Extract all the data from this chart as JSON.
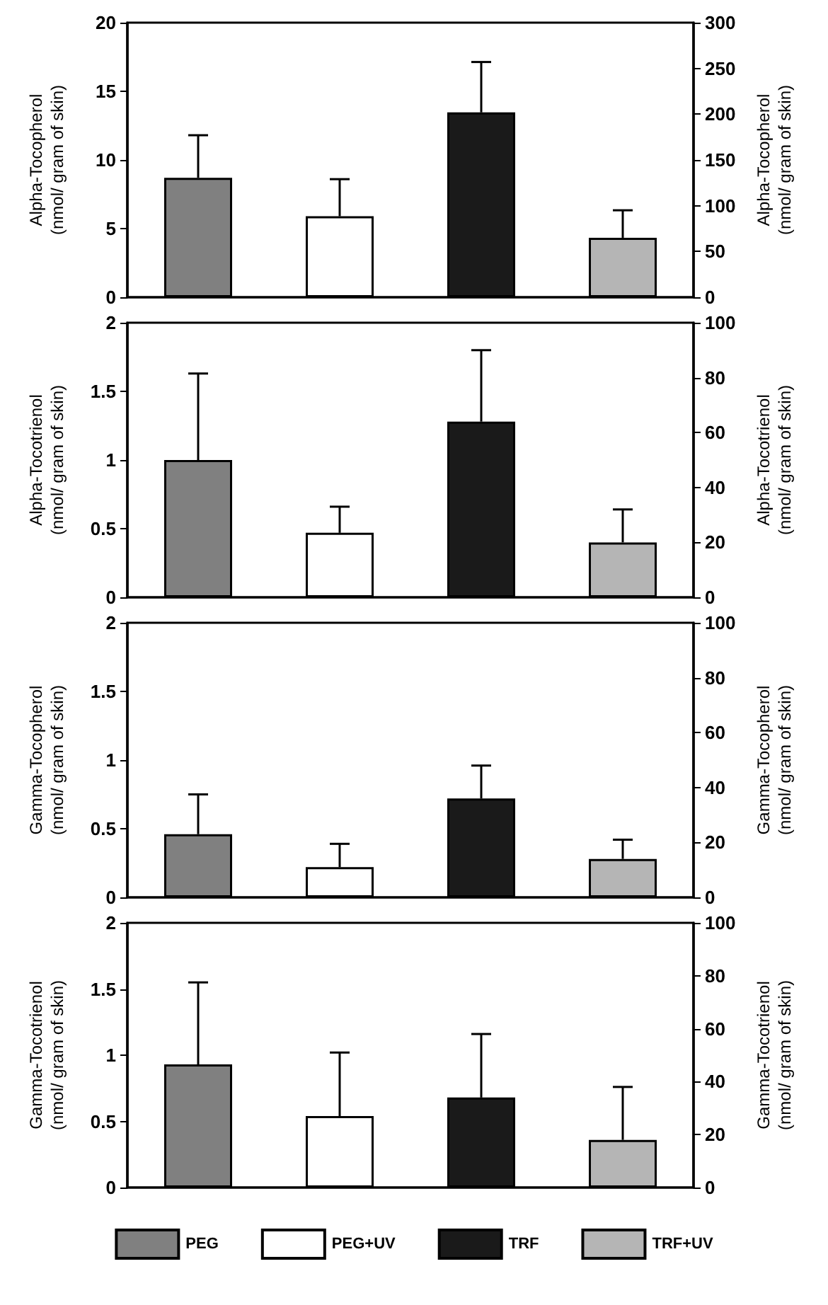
{
  "chart_data": [
    {
      "type": "bar",
      "categories": [
        null,
        null,
        null,
        null
      ],
      "ylabel": "Alpha-Tocopherol\n(nmol/ gram of skin)",
      "y2label": "Alpha-Tocopherol\n(nmol/ gram of skin)",
      "ylim": [
        0,
        20
      ],
      "yticks": [
        0,
        5,
        10,
        15,
        20
      ],
      "y2lim": [
        0,
        300
      ],
      "y2ticks": [
        0,
        50,
        100,
        150,
        200,
        250,
        300
      ],
      "tick_labels": "y",
      "grid": false,
      "series": [
        {
          "color": "#808080",
          "values": [
            8.7,
            null,
            null,
            null
          ],
          "errors": [
            [
              8.7,
              11.8
            ],
            null,
            null,
            null
          ]
        },
        {
          "color": "#ffffff",
          "values": [
            null,
            5.9,
            null,
            null
          ],
          "errors": [
            null,
            [
              5.9,
              8.6
            ],
            null,
            null
          ]
        },
        {
          "color": "#1a1a1a",
          "axis": "y2",
          "values": [
            null,
            null,
            202,
            null
          ],
          "errors": [
            null,
            null,
            [
              202,
              257
            ],
            null
          ]
        },
        {
          "color": "#b5b5b5",
          "axis": "y2",
          "values": [
            null,
            null,
            null,
            65
          ],
          "errors": [
            null,
            null,
            null,
            [
              65,
              95
            ]
          ]
        }
      ]
    },
    {
      "type": "bar",
      "categories": [
        null,
        null,
        null,
        null
      ],
      "ylabel": "Alpha-Tocotrienol\n(nmol/ gram of skin)",
      "y2label": "Alpha-Tocotrienol\n(nmol/ gram of skin)",
      "ylim": [
        0,
        2
      ],
      "yticks": [
        0,
        0.5,
        1,
        1.5,
        2
      ],
      "y2lim": [
        0,
        100
      ],
      "y2ticks": [
        0,
        20,
        40,
        60,
        80,
        100
      ],
      "tick_labels": "y",
      "grid": false,
      "series": [
        {
          "color": "#808080",
          "values": [
            1.0,
            null,
            null,
            null
          ],
          "errors": [
            [
              1.0,
              1.63
            ],
            null,
            null,
            null
          ]
        },
        {
          "color": "#ffffff",
          "values": [
            null,
            0.47,
            null,
            null
          ],
          "errors": [
            null,
            [
              0.47,
              0.66
            ],
            null,
            null
          ]
        },
        {
          "color": "#1a1a1a",
          "axis": "y2",
          "values": [
            null,
            null,
            64,
            null
          ],
          "errors": [
            null,
            null,
            [
              64,
              90
            ],
            null
          ]
        },
        {
          "color": "#b5b5b5",
          "axis": "y2",
          "values": [
            null,
            null,
            null,
            20
          ],
          "errors": [
            null,
            null,
            null,
            [
              20,
              32
            ]
          ]
        }
      ]
    },
    {
      "type": "bar",
      "categories": [
        null,
        null,
        null,
        null
      ],
      "ylabel": "Gamma-Tocopherol\n(nmol/ gram of skin)",
      "y2label": "Gamma-Tocopherol\n(nmol/ gram of skin)",
      "ylim": [
        0,
        2
      ],
      "yticks": [
        0,
        0.5,
        1,
        1.5,
        2
      ],
      "y2lim": [
        0,
        100
      ],
      "y2ticks": [
        0,
        20,
        40,
        60,
        80,
        100
      ],
      "tick_labels": "y",
      "grid": false,
      "series": [
        {
          "color": "#808080",
          "values": [
            0.46,
            null,
            null,
            null
          ],
          "errors": [
            [
              0.46,
              0.75
            ],
            null,
            null,
            null
          ]
        },
        {
          "color": "#ffffff",
          "values": [
            null,
            0.22,
            null,
            null
          ],
          "errors": [
            null,
            [
              0.22,
              0.39
            ],
            null,
            null
          ]
        },
        {
          "color": "#1a1a1a",
          "axis": "y2",
          "values": [
            null,
            null,
            36,
            null
          ],
          "errors": [
            null,
            null,
            [
              36,
              48
            ],
            null
          ]
        },
        {
          "color": "#b5b5b5",
          "axis": "y2",
          "values": [
            null,
            null,
            null,
            14
          ],
          "errors": [
            null,
            null,
            null,
            [
              14,
              21
            ]
          ]
        }
      ]
    },
    {
      "type": "bar",
      "categories": [
        null,
        null,
        null,
        null
      ],
      "ylabel": "Gamma-Tocotrienol\n(nmol/ gram of skin)",
      "y2label": "Gamma-Tocotrienol\n(nmol/ gram of skin)",
      "ylim": [
        0,
        2
      ],
      "yticks": [
        0,
        0.5,
        1,
        1.5,
        2
      ],
      "y2lim": [
        0,
        100
      ],
      "y2ticks": [
        0,
        20,
        40,
        60,
        80,
        100
      ],
      "tick_labels": "y",
      "grid": false,
      "legend": "bottom",
      "series": [
        {
          "name": "PEG",
          "color": "#808080",
          "values": [
            0.93,
            null,
            null,
            null
          ],
          "errors": [
            [
              0.93,
              1.55
            ],
            null,
            null,
            null
          ]
        },
        {
          "name": "PEG+UV",
          "color": "#ffffff",
          "values": [
            null,
            0.54,
            null,
            null
          ],
          "errors": [
            null,
            [
              0.54,
              1.02
            ],
            null,
            null
          ]
        },
        {
          "name": "TRF",
          "color": "#1a1a1a",
          "axis": "y2",
          "values": [
            null,
            null,
            34,
            null
          ],
          "errors": [
            null,
            null,
            [
              34,
              58
            ],
            null
          ]
        },
        {
          "name": "TRF+UV",
          "color": "#b5b5b5",
          "axis": "y2",
          "values": [
            null,
            null,
            null,
            18
          ],
          "errors": [
            null,
            null,
            null,
            [
              18,
              38
            ]
          ]
        }
      ]
    }
  ]
}
